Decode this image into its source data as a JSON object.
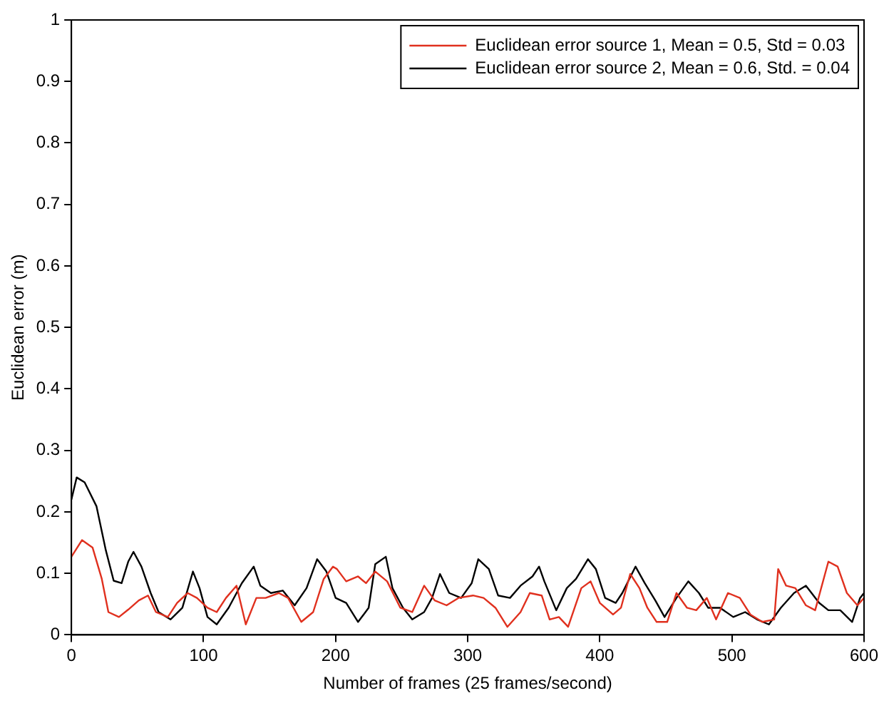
{
  "chart_data": {
    "type": "line",
    "xlabel": "Number of frames (25 frames/second)",
    "ylabel": "Euclidean error (m)",
    "xlim": [
      0,
      600
    ],
    "xticks": [
      0,
      100,
      200,
      300,
      400,
      500,
      600
    ],
    "ylim": [
      0,
      1
    ],
    "yticks": [
      0,
      0.1,
      0.2,
      0.3,
      0.4,
      0.5,
      0.6,
      0.7,
      0.8,
      0.9,
      1
    ],
    "grid": false,
    "legend": "top right",
    "marker": "none",
    "line_style": "solid",
    "series": [
      {
        "name": "Euclidean error source 1, Mean = 0.5, Std = 0.03",
        "color": "#e0301e",
        "x": [
          0,
          8,
          16,
          23,
          28,
          36,
          43,
          51,
          58,
          64,
          73,
          80,
          88,
          95,
          103,
          110,
          117,
          125,
          132,
          140,
          147,
          157,
          164,
          174,
          183,
          191,
          198,
          201,
          208,
          217,
          223,
          230,
          239,
          249,
          258,
          267,
          275,
          284,
          293,
          304,
          312,
          321,
          330,
          340,
          347,
          356,
          362,
          369,
          376,
          386,
          393,
          400,
          410,
          416,
          423,
          430,
          436,
          443,
          451,
          458,
          466,
          473,
          481,
          488,
          497,
          506,
          514,
          523,
          532,
          535,
          541,
          548,
          556,
          563,
          573,
          580,
          587,
          595,
          600
        ],
        "values": [
          0.127,
          0.154,
          0.142,
          0.091,
          0.037,
          0.029,
          0.041,
          0.056,
          0.064,
          0.037,
          0.029,
          0.052,
          0.068,
          0.06,
          0.044,
          0.037,
          0.06,
          0.08,
          0.017,
          0.06,
          0.06,
          0.068,
          0.06,
          0.021,
          0.037,
          0.091,
          0.111,
          0.107,
          0.087,
          0.095,
          0.084,
          0.103,
          0.087,
          0.044,
          0.037,
          0.08,
          0.056,
          0.048,
          0.06,
          0.064,
          0.06,
          0.044,
          0.013,
          0.037,
          0.068,
          0.064,
          0.025,
          0.029,
          0.013,
          0.076,
          0.087,
          0.052,
          0.033,
          0.044,
          0.099,
          0.076,
          0.044,
          0.021,
          0.021,
          0.068,
          0.044,
          0.04,
          0.06,
          0.025,
          0.068,
          0.06,
          0.033,
          0.021,
          0.025,
          0.107,
          0.08,
          0.076,
          0.048,
          0.04,
          0.119,
          0.111,
          0.068,
          0.048,
          0.06
        ]
      },
      {
        "name": "Euclidean error source 2, Mean = 0.6, Std. = 0.04",
        "color": "#000000",
        "x": [
          0,
          4,
          10,
          19,
          26,
          32,
          38,
          43,
          47,
          53,
          60,
          66,
          75,
          84,
          92,
          97,
          103,
          110,
          119,
          129,
          138,
          143,
          151,
          160,
          169,
          178,
          186,
          193,
          200,
          208,
          217,
          225,
          230,
          238,
          243,
          251,
          258,
          267,
          273,
          279,
          286,
          295,
          303,
          308,
          316,
          323,
          332,
          340,
          349,
          354,
          358,
          367,
          375,
          382,
          391,
          397,
          404,
          412,
          417,
          427,
          434,
          442,
          449,
          458,
          467,
          475,
          482,
          491,
          501,
          510,
          519,
          528,
          537,
          547,
          556,
          566,
          573,
          582,
          591,
          597,
          600
        ],
        "values": [
          0.22,
          0.256,
          0.248,
          0.209,
          0.138,
          0.088,
          0.084,
          0.119,
          0.135,
          0.111,
          0.068,
          0.037,
          0.025,
          0.044,
          0.103,
          0.076,
          0.029,
          0.017,
          0.044,
          0.084,
          0.111,
          0.08,
          0.068,
          0.072,
          0.048,
          0.076,
          0.123,
          0.103,
          0.06,
          0.052,
          0.021,
          0.044,
          0.115,
          0.127,
          0.076,
          0.044,
          0.025,
          0.037,
          0.06,
          0.099,
          0.068,
          0.06,
          0.084,
          0.123,
          0.107,
          0.064,
          0.06,
          0.08,
          0.095,
          0.111,
          0.087,
          0.04,
          0.076,
          0.091,
          0.123,
          0.107,
          0.06,
          0.052,
          0.068,
          0.111,
          0.084,
          0.056,
          0.029,
          0.06,
          0.087,
          0.068,
          0.044,
          0.044,
          0.029,
          0.037,
          0.025,
          0.017,
          0.044,
          0.068,
          0.08,
          0.052,
          0.04,
          0.04,
          0.021,
          0.06,
          0.068
        ]
      }
    ]
  }
}
